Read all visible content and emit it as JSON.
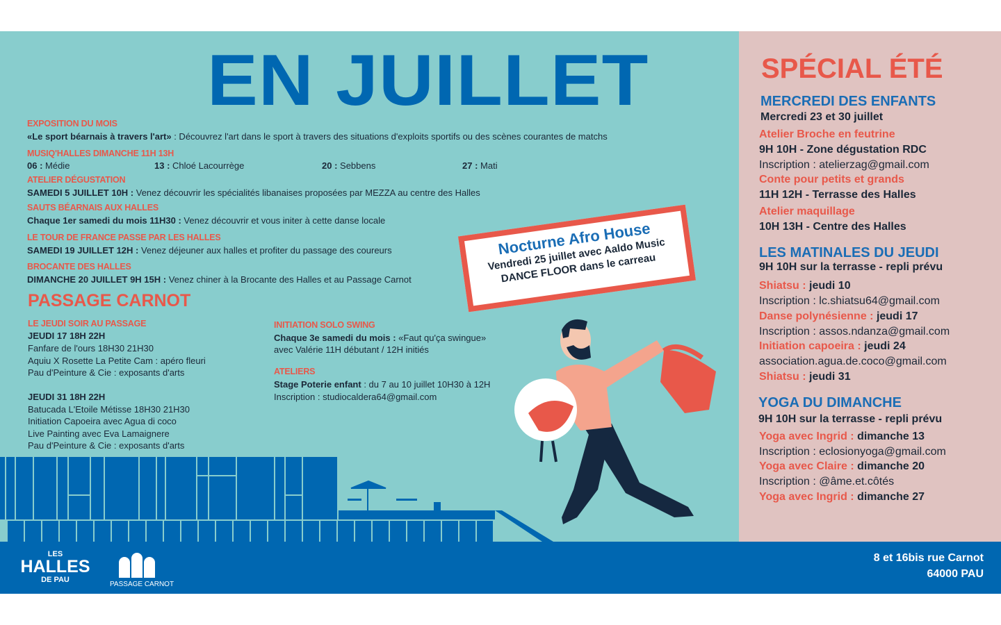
{
  "title": "EN JUILLET",
  "events": [
    {
      "heading": "EXPOSITION DU MOIS",
      "bold": "«Le sport béarnais à travers l'art»",
      "text": "  : Découvrez l'art dans le sport à travers des situations d'exploits sportifs ou des scènes courantes de matchs"
    },
    {
      "heading": "MUSIQ'HALLES DIMANCHE 11H 13H"
    },
    {
      "heading": "ATELIER DÉGUSTATION",
      "bold": "SAMEDI 5 JUILLET 10H :",
      "text": " Venez découvrir les spécialités libanaises proposées par MEZZA au centre des Halles"
    },
    {
      "heading": "SAUTS BÉARNAIS AUX HALLES",
      "bold": "Chaque 1er samedi du mois 11H30 :",
      "text": " Venez découvrir et vous initer à cette danse locale"
    },
    {
      "heading": "LE TOUR DE FRANCE PASSE PAR LES HALLES",
      "bold": "SAMEDI 19 JUILLET 12H :",
      "text": " Venez déjeuner aux halles et profiter du passage des coureurs"
    },
    {
      "heading": "BROCANTE DES HALLES",
      "bold": "DIMANCHE 20 JUILLET 9H 15H :",
      "text": " Venez chiner à la Brocante des Halles et au Passage Carnot"
    }
  ],
  "musiq": [
    {
      "date": "06 :",
      "name": " Médie"
    },
    {
      "date": "13 :",
      "name": " Chloé Lacourrège"
    },
    {
      "date": "20 :",
      "name": " Sebbens"
    },
    {
      "date": "27 :",
      "name": " Mati"
    }
  ],
  "passage": {
    "title": "PASSAGE CARNOT",
    "jeudi_heading": "LE JEUDI SOIR AU PASSAGE",
    "jeudi17": {
      "title": "JEUDI 17  18H 22H",
      "lines": [
        "Fanfare de l'ours 18H30 21H30",
        "Aquiu X Rosette La Petite Cam : apéro fleuri",
        "Pau d'Peinture & Cie : exposants d'arts"
      ]
    },
    "jeudi31": {
      "title": "JEUDI 31  18H 22H",
      "lines": [
        "Batucada L'Etoile Métisse 18H30 21H30",
        "Initiation Capoeira avec Agua di coco",
        "Live Painting avec Eva Lamaignere",
        "Pau d'Peinture & Cie : exposants d'arts"
      ]
    },
    "swing": {
      "heading": "INITIATION SOLO SWING",
      "bold": "Chaque 3e samedi du mois :",
      "text": " «Faut qu'ça swingue»",
      "line2": "avec Valérie 11H débutant / 12H initiés"
    },
    "ateliers": {
      "heading": "ATELIERS",
      "bold": "Stage Poterie enfant",
      "text": " : du 7 au 10 juillet 10H30 à 12H",
      "line2": "Inscription : studiocaldera64@gmail.com"
    }
  },
  "promo": {
    "title": "Nocturne Afro House",
    "line1": "Vendredi 25 juillet avec Aaldo Music",
    "line2": "DANCE FLOOR dans le carreau"
  },
  "special": {
    "title": "SPÉCIAL ÉTÉ",
    "mercredi": {
      "heading": "MERCREDI DES ENFANTS",
      "dates": "Mercredi 23 et 30 juillet",
      "items": [
        {
          "name": "Atelier Broche en feutrine",
          "when": "9H 10H - Zone dégustation RDC",
          "info": "Inscription : atelierzag@gmail.com"
        },
        {
          "name": "Conte pour petits et grands",
          "when": "11H 12H - Terrasse des Halles"
        },
        {
          "name": "Atelier maquillage",
          "when": "10H 13H - Centre des Halles"
        }
      ]
    },
    "matinales": {
      "heading": "LES MATINALES DU JEUDI",
      "sub": "9H 10H sur la terrasse - repli prévu",
      "items": [
        {
          "name": "Shiatsu : ",
          "day": "jeudi 10",
          "info": "Inscription : lc.shiatsu64@gmail.com"
        },
        {
          "name": "Danse polynésienne : ",
          "day": "jeudi 17",
          "info": "Inscription : assos.ndanza@gmail.com"
        },
        {
          "name": "Initiation capoeira : ",
          "day": "jeudi 24",
          "info": "association.agua.de.coco@gmail.com"
        },
        {
          "name": "Shiatsu : ",
          "day": "jeudi 31"
        }
      ]
    },
    "yoga": {
      "heading": "YOGA DU DIMANCHE",
      "sub": "9H 10H sur la terrasse - repli prévu",
      "items": [
        {
          "name": "Yoga avec Ingrid : ",
          "day": "dimanche 13",
          "info": "Inscription : eclosionyoga@gmail.com"
        },
        {
          "name": "Yoga avec Claire : ",
          "day": "dimanche 20",
          "info": "Inscription : @âme.et.côtés"
        },
        {
          "name": "Yoga avec Ingrid : ",
          "day": "dimanche 27"
        }
      ]
    }
  },
  "footer": {
    "logo_halles": {
      "les": "LES",
      "halles": "HALLES",
      "depau": "DE PAU"
    },
    "logo_passage": "PASSAGE CARNOT",
    "address1": "8 et 16bis rue Carnot",
    "address2": "64000 PAU"
  },
  "colors": {
    "teal": "#88cdcd",
    "pink": "#e0c3c1",
    "blue": "#0067b1",
    "red": "#e8584a",
    "dark": "#1b2838"
  }
}
